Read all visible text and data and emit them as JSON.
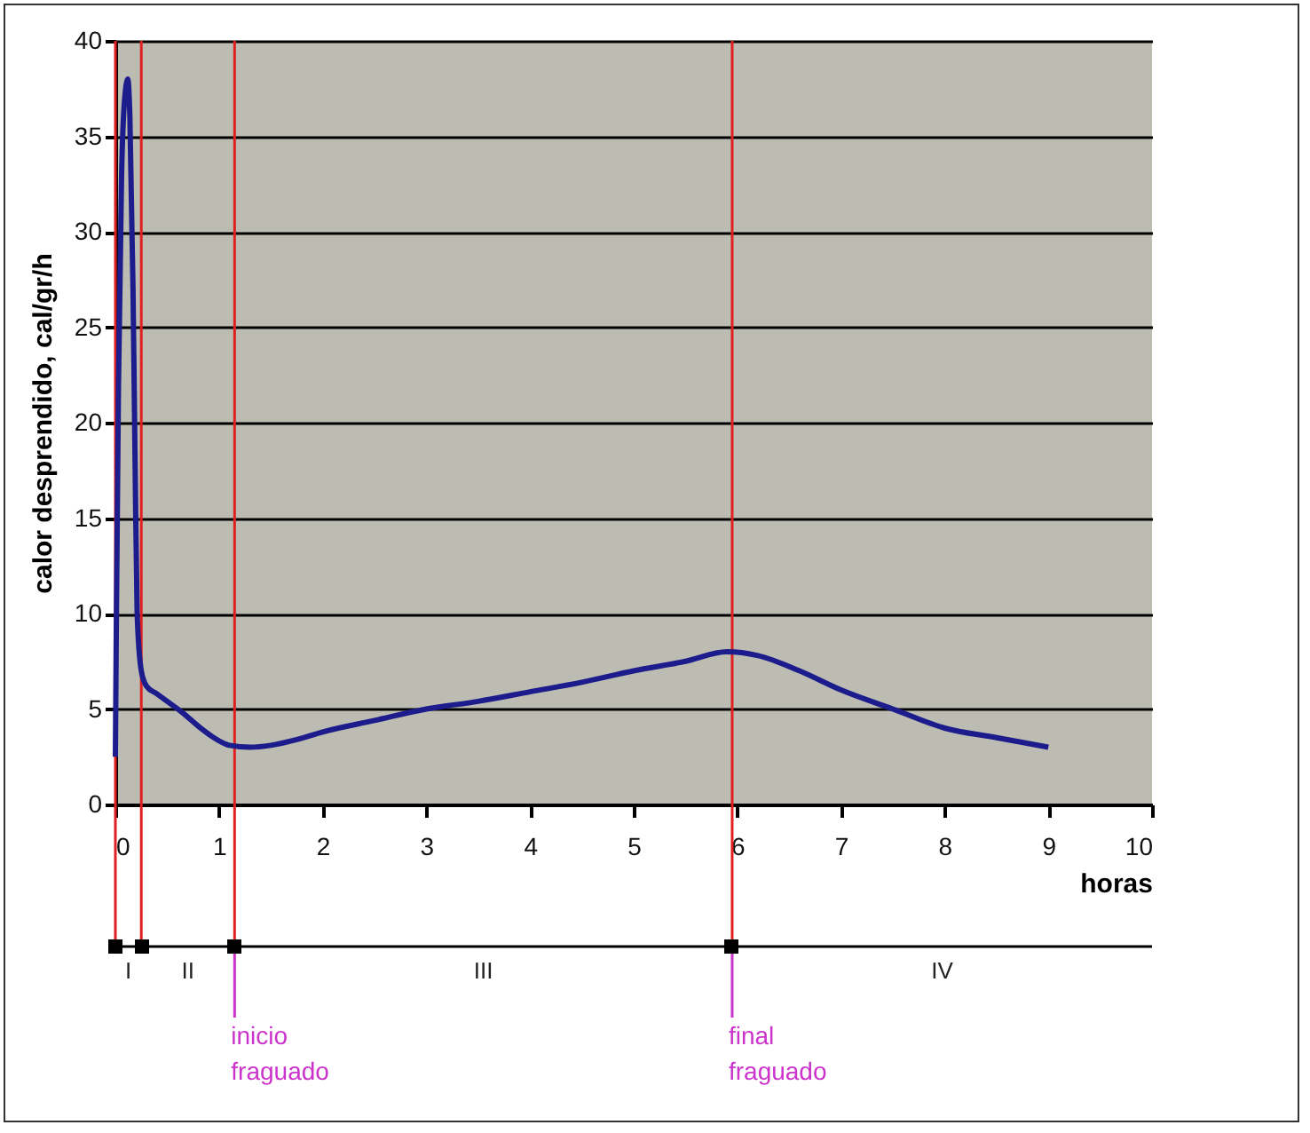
{
  "chart_data": {
    "type": "line",
    "xlabel": "horas",
    "ylabel": "calor desprendido, cal/gr/h",
    "x": [
      0,
      0.01,
      0.03,
      0.06,
      0.09,
      0.12,
      0.14,
      0.17,
      0.19,
      0.21,
      0.25,
      0.3,
      0.4,
      0.5,
      0.65,
      0.8,
      0.95,
      1.1,
      1.3,
      1.5,
      1.75,
      2,
      2.5,
      3,
      3.5,
      4,
      4.5,
      5,
      5.5,
      5.9,
      6.2,
      6.6,
      7,
      7.5,
      8,
      8.5,
      9
    ],
    "series": [
      {
        "color": "#1c1c8c",
        "values": [
          2.5,
          10,
          22,
          33,
          37,
          38,
          36,
          27,
          18,
          10,
          7,
          6.2,
          5.8,
          5.4,
          4.8,
          4.1,
          3.5,
          3.1,
          3.0,
          3.1,
          3.4,
          3.8,
          4.4,
          5.0,
          5.4,
          5.9,
          6.4,
          7.0,
          7.5,
          8.0,
          7.8,
          7.0,
          6.0,
          5.0,
          4.0,
          3.5,
          3.0
        ]
      }
    ],
    "xlim": [
      0,
      10
    ],
    "xticks": [
      0,
      1,
      2,
      3,
      4,
      5,
      6,
      7,
      8,
      9,
      10
    ],
    "ylim": [
      0,
      40
    ],
    "yticks": [
      0,
      5,
      10,
      15,
      20,
      25,
      30,
      35,
      40
    ],
    "grid": "y",
    "ref_lines": [
      {
        "axis": "x",
        "value": 0,
        "label": null,
        "color": "#e02020"
      },
      {
        "axis": "x",
        "value": 0.25,
        "label": null,
        "color": "#e02020"
      },
      {
        "axis": "x",
        "value": 1.15,
        "label": "inicio fraguado",
        "color": "#e02020"
      },
      {
        "axis": "x",
        "value": 5.95,
        "label": "final fraguado",
        "color": "#e02020"
      }
    ],
    "annotations": [
      "I",
      "II",
      "III",
      "IV"
    ]
  }
}
